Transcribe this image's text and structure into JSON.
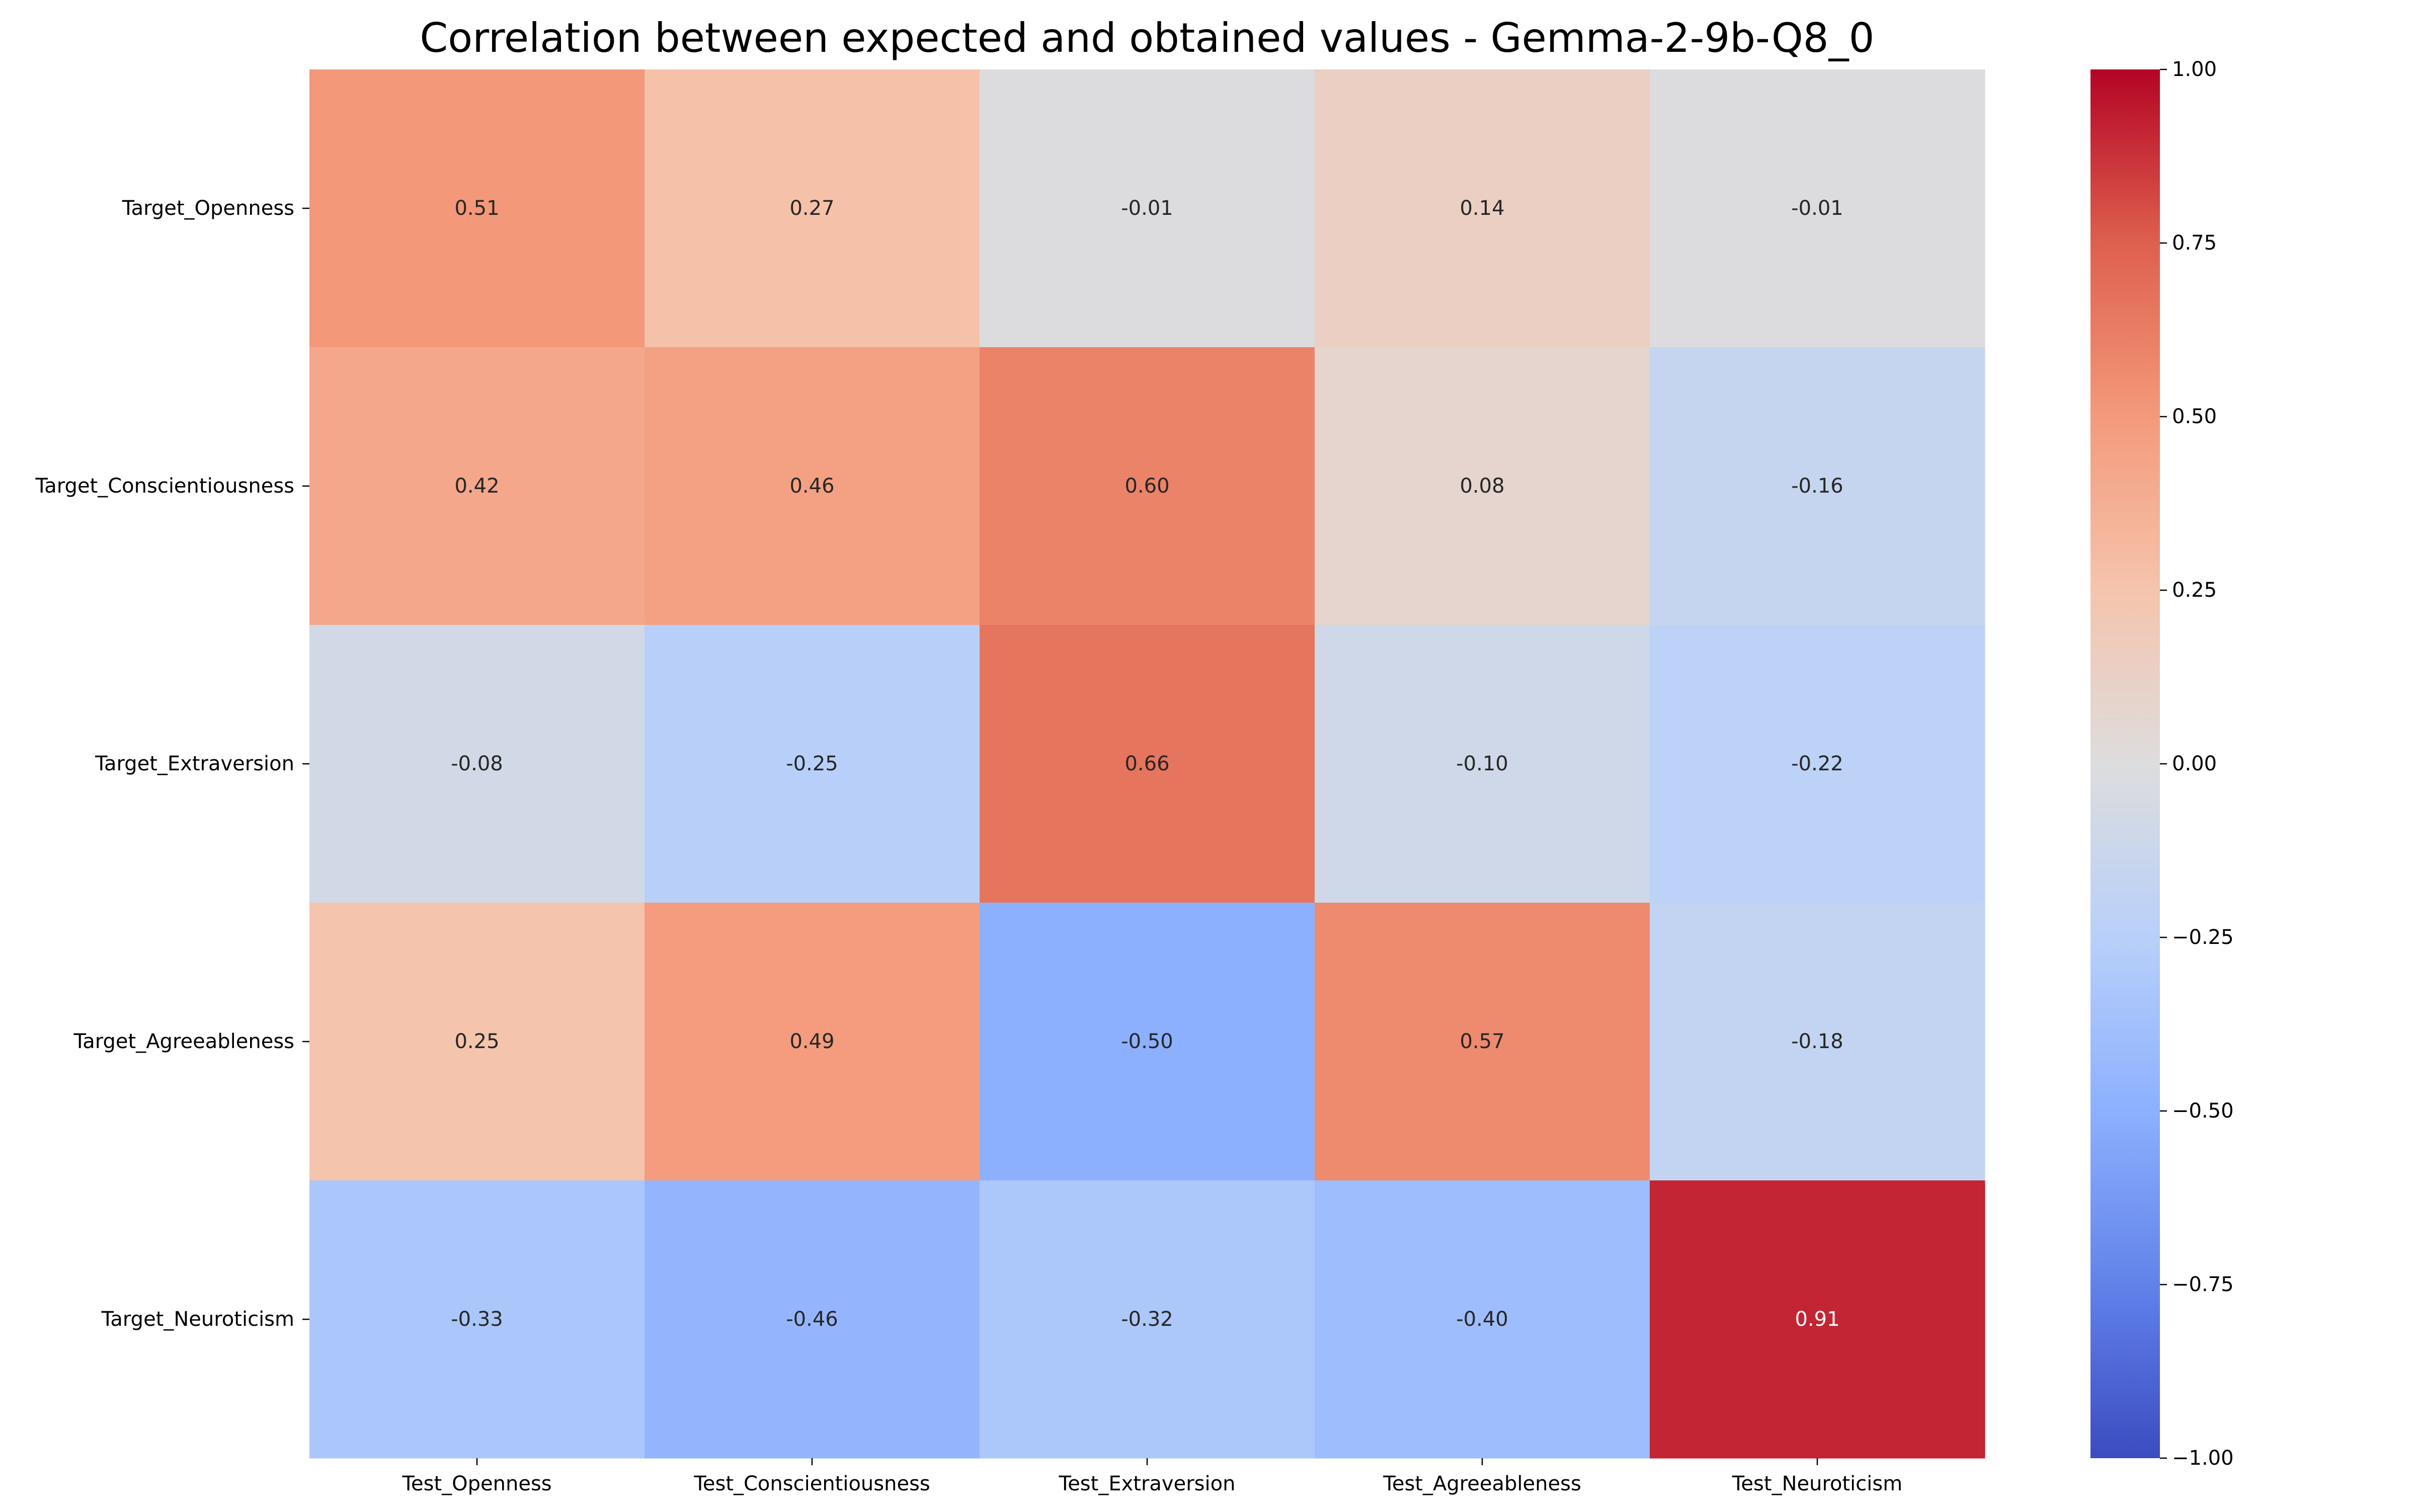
{
  "chart_data": {
    "type": "heatmap",
    "title": "Correlation between expected and obtained values - Gemma-2-9b-Q8_0",
    "xlabel": "",
    "ylabel": "",
    "x_categories": [
      "Test_Openness",
      "Test_Conscientiousness",
      "Test_Extraversion",
      "Test_Agreeableness",
      "Test_Neuroticism"
    ],
    "y_categories": [
      "Target_Openness",
      "Target_Conscientiousness",
      "Target_Extraversion",
      "Target_Agreeableness",
      "Target_Neuroticism"
    ],
    "values": [
      [
        0.51,
        0.27,
        -0.01,
        0.14,
        -0.01
      ],
      [
        0.42,
        0.46,
        0.6,
        0.08,
        -0.16
      ],
      [
        -0.08,
        -0.25,
        0.66,
        -0.1,
        -0.22
      ],
      [
        0.25,
        0.49,
        -0.5,
        0.57,
        -0.18
      ],
      [
        -0.33,
        -0.46,
        -0.32,
        -0.4,
        0.91
      ]
    ],
    "value_format": "0.00",
    "colormap": "coolwarm",
    "vmin": -1.0,
    "vmax": 1.0,
    "colorbar_ticks": [
      1.0,
      0.75,
      0.5,
      0.25,
      0.0,
      -0.25,
      -0.5,
      -0.75,
      -1.0
    ],
    "colorbar_tick_labels": [
      "1.00",
      "0.75",
      "0.50",
      "0.25",
      "0.00",
      "−0.25",
      "−0.50",
      "−0.75",
      "−1.00"
    ],
    "grid": false,
    "legend": "colorbar-right"
  }
}
